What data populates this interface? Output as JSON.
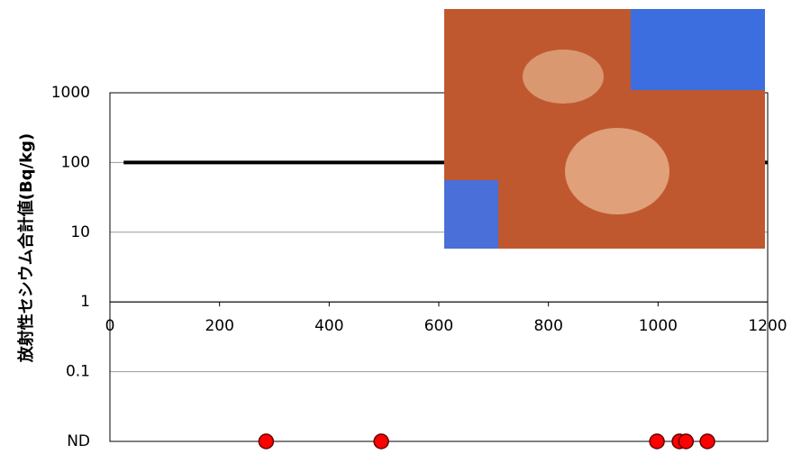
{
  "chart_data": {
    "type": "scatter",
    "ylabel": "放射性セシウム合計値(Bq/kg)",
    "log_y": true,
    "grid": true,
    "xlim": [
      0,
      1200
    ],
    "xticks": [
      0,
      200,
      400,
      600,
      800,
      1000,
      1200
    ],
    "ylim": [
      0.01,
      1000
    ],
    "yticks": [
      {
        "value": 0.01,
        "label": "ND"
      },
      0.1,
      1,
      10,
      100,
      1000
    ],
    "x_axis_at": 1,
    "series": [
      {
        "style": "line",
        "color": "#000000",
        "x": [
          25,
          1200
        ],
        "values": [
          100,
          100
        ]
      },
      {
        "style": "marker",
        "color": "#ff0000",
        "x": [
          285,
          495,
          998,
          1039,
          1051,
          1090
        ],
        "values": [
          0.01,
          0.01,
          0.01,
          0.01,
          0.01,
          0.01
        ]
      }
    ]
  }
}
